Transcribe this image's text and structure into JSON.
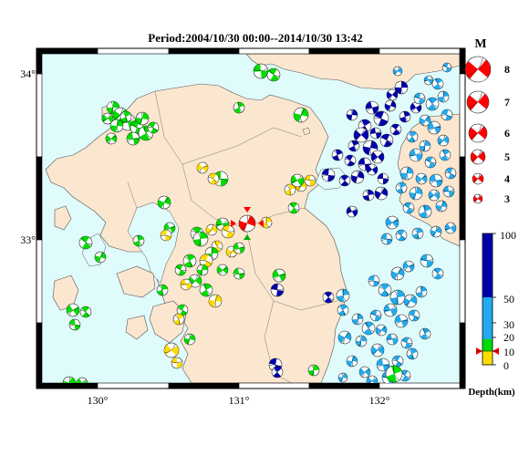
{
  "title": "Period:2004/10/30 00:00--2014/10/30 13:42",
  "map": {
    "lon_ticks": [
      "130°",
      "131°",
      "132°"
    ],
    "lat_ticks": [
      "34°",
      "33°"
    ],
    "colors": {
      "ocean": "#e0fbfb",
      "land": "#fbe6cf",
      "frame_dark": "#000000",
      "frame_light": "#ffffff"
    }
  },
  "magnitude_legend": {
    "label": "M",
    "classes": [
      "8",
      "7",
      "6",
      "5",
      "4",
      "3"
    ],
    "fill_color": "#ff0000"
  },
  "depth_legend": {
    "tick_labels": [
      "100",
      "50",
      "30",
      "20",
      "10",
      "0"
    ],
    "title": "Depth(km)",
    "colors": {
      "0-10": "#ffdc00",
      "10-30": "#00dd00",
      "30-50": "#22aaee",
      "50-100": "#0000aa"
    },
    "current_marker_depth": "10"
  },
  "mechanism_colors": {
    "shallow": "#ffdc00",
    "crustal": "#00dd00",
    "intermediate": "#22aaee",
    "deep": "#0000aa",
    "highlight": "#ff0000"
  }
}
